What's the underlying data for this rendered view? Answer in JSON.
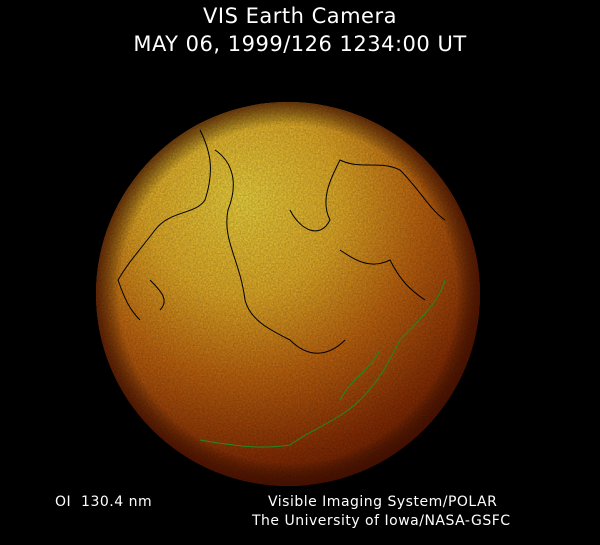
{
  "header": {
    "title": "VIS Earth Camera",
    "timestamp": "MAY 06, 1999/126 1234:00 UT"
  },
  "footer": {
    "wavelength": "OI  130.4 nm",
    "instrument": "Visible Imaging System/POLAR",
    "institution": "The University of Iowa/NASA-GSFC"
  },
  "image": {
    "subject": "earth-disk-uv-emission",
    "colors": {
      "bright": "#f6d23a",
      "mid": "#c86a10",
      "dark": "#5a1400",
      "coastline_day": "#000000",
      "coastline_night": "#1f8a1f"
    }
  }
}
